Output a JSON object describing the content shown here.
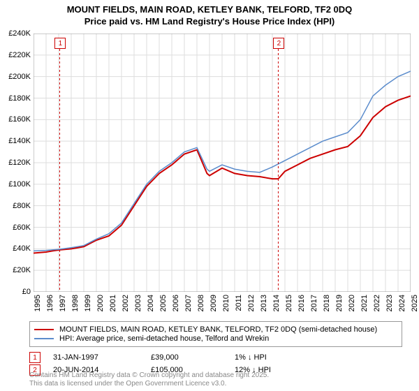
{
  "title_line1": "MOUNT FIELDS, MAIN ROAD, KETLEY BANK, TELFORD, TF2 0DQ",
  "title_line2": "Price paid vs. HM Land Registry's House Price Index (HPI)",
  "chart": {
    "type": "line",
    "background_color": "#ffffff",
    "grid_color": "#dddddd",
    "axis_color": "#000000",
    "y": {
      "min": 0,
      "max": 240000,
      "step": 20000,
      "ticks": [
        "£0",
        "£20K",
        "£40K",
        "£60K",
        "£80K",
        "£100K",
        "£120K",
        "£140K",
        "£160K",
        "£180K",
        "£200K",
        "£220K",
        "£240K"
      ]
    },
    "x": {
      "min": 1995,
      "max": 2025,
      "ticks": [
        1995,
        1996,
        1997,
        1998,
        1999,
        2000,
        2001,
        2002,
        2003,
        2004,
        2005,
        2006,
        2007,
        2008,
        2009,
        2010,
        2011,
        2012,
        2013,
        2014,
        2015,
        2016,
        2017,
        2018,
        2019,
        2020,
        2021,
        2022,
        2023,
        2024,
        2025
      ]
    },
    "series": [
      {
        "name": "price_paid",
        "color": "#cc0000",
        "line_width": 2,
        "data": [
          [
            1995,
            36000
          ],
          [
            1996,
            37000
          ],
          [
            1996.5,
            38000
          ],
          [
            1997.08,
            39000
          ],
          [
            1998,
            40000
          ],
          [
            1999,
            42000
          ],
          [
            2000,
            48000
          ],
          [
            2001,
            52000
          ],
          [
            2002,
            62000
          ],
          [
            2003,
            80000
          ],
          [
            2004,
            98000
          ],
          [
            2005,
            110000
          ],
          [
            2006,
            118000
          ],
          [
            2007,
            128000
          ],
          [
            2008,
            132000
          ],
          [
            2008.8,
            110000
          ],
          [
            2009,
            108000
          ],
          [
            2010,
            115000
          ],
          [
            2011,
            110000
          ],
          [
            2012,
            108000
          ],
          [
            2013,
            107000
          ],
          [
            2014,
            105000
          ],
          [
            2014.47,
            105000
          ],
          [
            2015,
            112000
          ],
          [
            2016,
            118000
          ],
          [
            2017,
            124000
          ],
          [
            2018,
            128000
          ],
          [
            2019,
            132000
          ],
          [
            2020,
            135000
          ],
          [
            2021,
            145000
          ],
          [
            2022,
            162000
          ],
          [
            2023,
            172000
          ],
          [
            2024,
            178000
          ],
          [
            2025,
            182000
          ]
        ]
      },
      {
        "name": "hpi",
        "color": "#5b8ccc",
        "line_width": 1.5,
        "data": [
          [
            1995,
            38000
          ],
          [
            1996,
            38500
          ],
          [
            1997,
            39500
          ],
          [
            1998,
            41000
          ],
          [
            1999,
            43000
          ],
          [
            2000,
            49000
          ],
          [
            2001,
            54000
          ],
          [
            2002,
            64000
          ],
          [
            2003,
            82000
          ],
          [
            2004,
            100000
          ],
          [
            2005,
            112000
          ],
          [
            2006,
            120000
          ],
          [
            2007,
            130000
          ],
          [
            2008,
            134000
          ],
          [
            2008.8,
            114000
          ],
          [
            2009,
            112000
          ],
          [
            2010,
            118000
          ],
          [
            2011,
            114000
          ],
          [
            2012,
            112000
          ],
          [
            2013,
            111000
          ],
          [
            2014,
            116000
          ],
          [
            2015,
            122000
          ],
          [
            2016,
            128000
          ],
          [
            2017,
            134000
          ],
          [
            2018,
            140000
          ],
          [
            2019,
            144000
          ],
          [
            2020,
            148000
          ],
          [
            2021,
            160000
          ],
          [
            2022,
            182000
          ],
          [
            2023,
            192000
          ],
          [
            2024,
            200000
          ],
          [
            2025,
            205000
          ]
        ]
      }
    ],
    "markers": [
      {
        "num": "1",
        "x": 1997.08,
        "color": "#cc0000"
      },
      {
        "num": "2",
        "x": 2014.47,
        "color": "#cc0000"
      }
    ]
  },
  "legend": {
    "items": [
      {
        "color": "#cc0000",
        "width": 2,
        "label": "MOUNT FIELDS, MAIN ROAD, KETLEY BANK, TELFORD, TF2 0DQ (semi-detached house)"
      },
      {
        "color": "#5b8ccc",
        "width": 1.5,
        "label": "HPI: Average price, semi-detached house, Telford and Wrekin"
      }
    ]
  },
  "marker_table": [
    {
      "num": "1",
      "color": "#cc0000",
      "date": "31-JAN-1997",
      "price": "£39,000",
      "pct": "1% ↓ HPI"
    },
    {
      "num": "2",
      "color": "#cc0000",
      "date": "20-JUN-2014",
      "price": "£105,000",
      "pct": "12% ↓ HPI"
    }
  ],
  "footer_line1": "Contains HM Land Registry data © Crown copyright and database right 2025.",
  "footer_line2": "This data is licensed under the Open Government Licence v3.0."
}
